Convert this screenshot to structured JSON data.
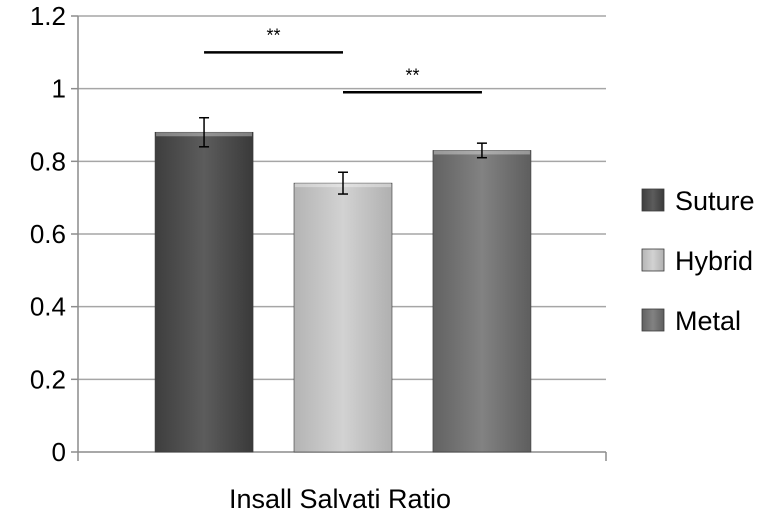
{
  "chart_data": {
    "type": "bar",
    "xlabel": "Insall Salvati Ratio",
    "ylabel": "",
    "ylim": [
      0,
      1.2
    ],
    "yticks": [
      {
        "value": 0,
        "label": "0"
      },
      {
        "value": 0.2,
        "label": "0.2"
      },
      {
        "value": 0.4,
        "label": "0.4"
      },
      {
        "value": 0.6,
        "label": "0.6"
      },
      {
        "value": 0.8,
        "label": "0.8"
      },
      {
        "value": 1.0,
        "label": "1"
      },
      {
        "value": 1.2,
        "label": "1.2"
      }
    ],
    "grid": true,
    "legend_position": "right",
    "series": [
      {
        "name": "Suture",
        "value": 0.88,
        "error": 0.04,
        "color": "#555555"
      },
      {
        "name": "Hybrid",
        "value": 0.74,
        "error": 0.03,
        "color": "#c8c8c8"
      },
      {
        "name": "Metal",
        "value": 0.83,
        "error": 0.02,
        "color": "#7a7a7a"
      }
    ],
    "significance": [
      {
        "from": 0,
        "to": 1,
        "level": 1.1,
        "label": "**"
      },
      {
        "from": 1,
        "to": 2,
        "level": 0.99,
        "label": "**"
      }
    ]
  }
}
